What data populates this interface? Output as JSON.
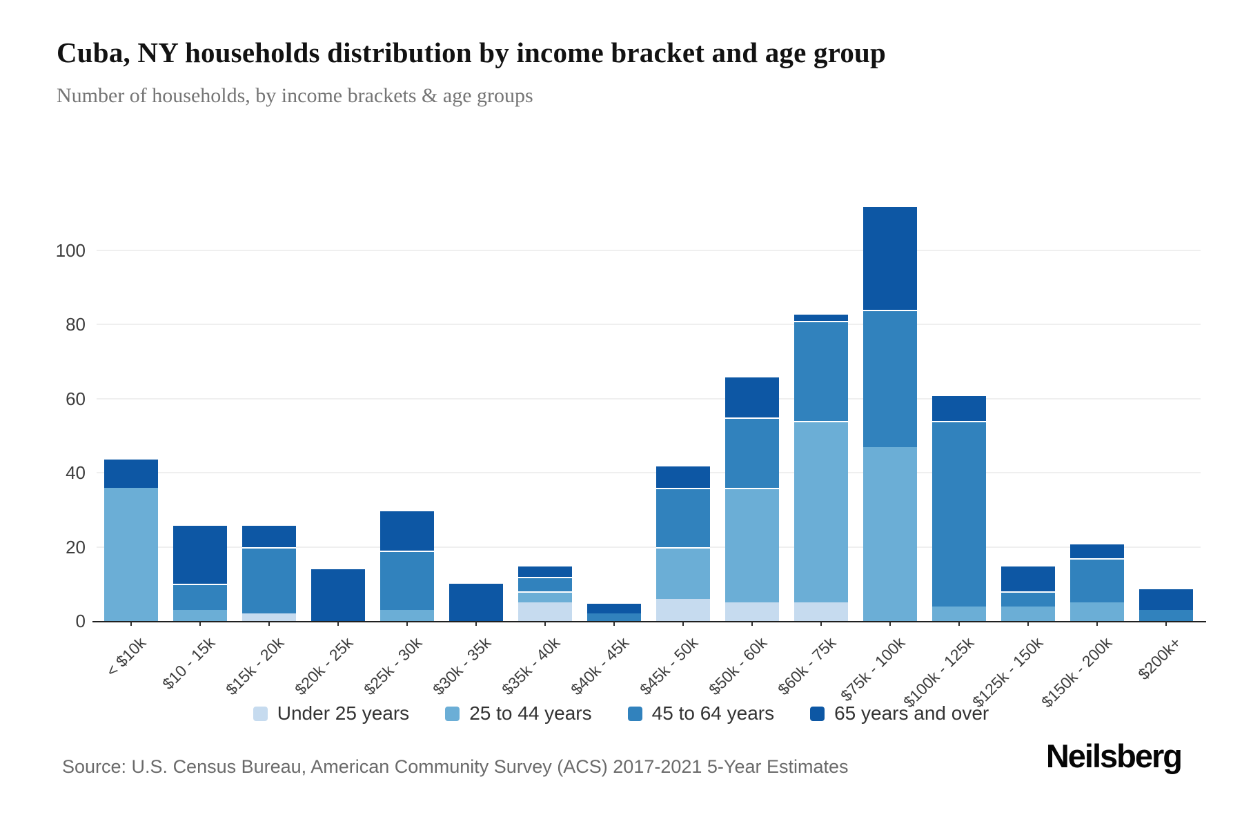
{
  "header": {
    "title": "Cuba, NY households distribution by income bracket and age group",
    "subtitle": "Number of households, by income brackets & age groups"
  },
  "footer": {
    "source": "Source: U.S. Census Bureau, American Community Survey (ACS) 2017-2021 5-Year Estimates",
    "brand": "Neilsberg"
  },
  "chart_data": {
    "type": "bar",
    "stacked": true,
    "title": "Cuba, NY households distribution by income bracket and age group",
    "xlabel": "",
    "ylabel": "Number of households",
    "grid": true,
    "legend_position": "bottom",
    "y_ticks": [
      0,
      20,
      40,
      60,
      80,
      100
    ],
    "y_max": 121,
    "categories": [
      "< $10k",
      "$10 - 15k",
      "$15k - 20k",
      "$20k - 25k",
      "$25k - 30k",
      "$30k - 35k",
      "$35k - 40k",
      "$40k - 45k",
      "$45k - 50k",
      "$50k - 60k",
      "$60k - 75k",
      "$75k - 100k",
      "$100k - 125k",
      "$125k - 150k",
      "$150k - 200k",
      "$200k+"
    ],
    "series": [
      {
        "name": "Under 25 years",
        "color": "#c6dbef",
        "values": [
          0,
          0,
          2,
          0,
          0,
          0,
          5,
          0,
          6,
          5,
          5,
          0,
          0,
          0,
          0,
          0
        ]
      },
      {
        "name": "25 to 44 years",
        "color": "#6baed6",
        "values": [
          36,
          3,
          0,
          0,
          3,
          0,
          3,
          0,
          14,
          31,
          49,
          47,
          4,
          4,
          5,
          0
        ]
      },
      {
        "name": "45 to 64 years",
        "color": "#3182bd",
        "values": [
          0,
          7,
          18,
          0,
          16,
          0,
          4,
          2,
          16,
          19,
          27,
          37,
          50,
          4,
          12,
          3
        ]
      },
      {
        "name": "65 years and over",
        "color": "#0d57a4",
        "values": [
          8,
          16,
          6,
          14,
          11,
          10,
          3,
          3,
          6,
          11,
          2,
          28,
          7,
          7,
          4,
          6
        ]
      }
    ],
    "totals": [
      44,
      26,
      26,
      14,
      30,
      10,
      15,
      5,
      42,
      66,
      83,
      112,
      61,
      15,
      21,
      9
    ],
    "colors": {
      "grid": "#efefef",
      "axis": "#1f1f1f",
      "text": "#3d3d3d"
    }
  }
}
